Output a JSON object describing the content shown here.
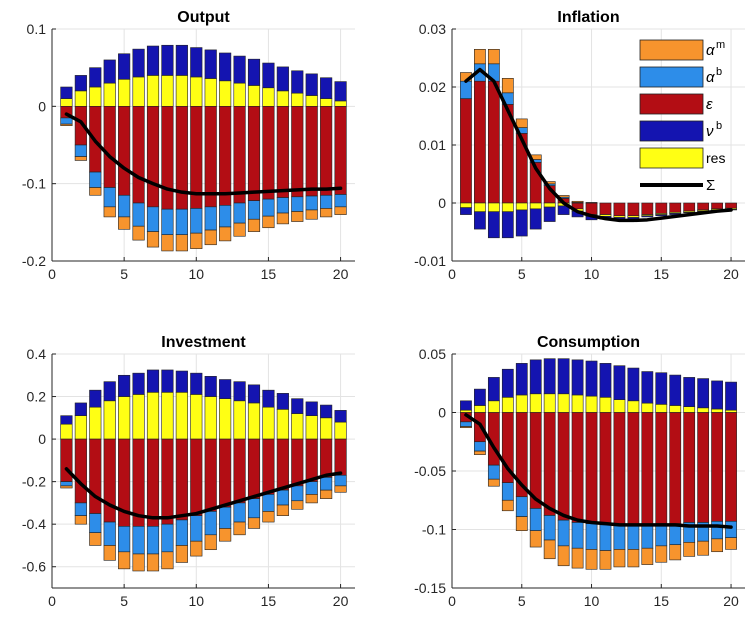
{
  "figure": {
    "colors": {
      "alpha_m": "#F7942D",
      "alpha_b": "#2D8DE9",
      "epsilon": "#B30D14",
      "nu_b": "#1414B0",
      "res": "#FFFF14",
      "sigma": "#000000"
    }
  },
  "chart_data": [
    {
      "type": "bar",
      "title": "Output",
      "xlabel": "",
      "ylabel": "",
      "stacked": true,
      "x": [
        1,
        2,
        3,
        4,
        5,
        6,
        7,
        8,
        9,
        10,
        11,
        12,
        13,
        14,
        15,
        16,
        17,
        18,
        19,
        20
      ],
      "xlim": [
        0,
        21
      ],
      "ylim": [
        -0.2,
        0.1
      ],
      "xticks": [
        0,
        5,
        10,
        15,
        20
      ],
      "yticks": [
        -0.2,
        -0.1,
        0,
        0.1
      ],
      "yticklabels": [
        "-0.2",
        "-0.1",
        "0",
        "0.1"
      ],
      "grid": true,
      "series": [
        {
          "key": "res",
          "values": [
            0.01,
            0.02,
            0.025,
            0.03,
            0.035,
            0.038,
            0.04,
            0.04,
            0.04,
            0.038,
            0.036,
            0.033,
            0.03,
            0.027,
            0.024,
            0.02,
            0.017,
            0.014,
            0.01,
            0.007
          ]
        },
        {
          "key": "nu_b",
          "values": [
            0.015,
            0.02,
            0.025,
            0.03,
            0.033,
            0.036,
            0.038,
            0.039,
            0.039,
            0.038,
            0.037,
            0.036,
            0.035,
            0.034,
            0.032,
            0.031,
            0.029,
            0.028,
            0.027,
            0.025
          ]
        },
        {
          "key": "epsilon",
          "values": [
            -0.015,
            -0.05,
            -0.085,
            -0.105,
            -0.115,
            -0.125,
            -0.13,
            -0.133,
            -0.133,
            -0.132,
            -0.13,
            -0.128,
            -0.125,
            -0.122,
            -0.12,
            -0.118,
            -0.117,
            -0.116,
            -0.115,
            -0.114
          ]
        },
        {
          "key": "alpha_b",
          "values": [
            -0.008,
            -0.015,
            -0.02,
            -0.025,
            -0.028,
            -0.03,
            -0.032,
            -0.033,
            -0.033,
            -0.032,
            -0.03,
            -0.028,
            -0.026,
            -0.024,
            -0.022,
            -0.02,
            -0.019,
            -0.018,
            -0.017,
            -0.016
          ]
        },
        {
          "key": "alpha_m",
          "values": [
            -0.002,
            -0.005,
            -0.01,
            -0.013,
            -0.016,
            -0.018,
            -0.02,
            -0.021,
            -0.021,
            -0.02,
            -0.019,
            -0.018,
            -0.017,
            -0.016,
            -0.015,
            -0.014,
            -0.013,
            -0.012,
            -0.011,
            -0.01
          ]
        }
      ],
      "sigma": [
        -0.01,
        -0.02,
        -0.045,
        -0.065,
        -0.08,
        -0.092,
        -0.1,
        -0.107,
        -0.111,
        -0.113,
        -0.113,
        -0.113,
        -0.112,
        -0.111,
        -0.11,
        -0.109,
        -0.108,
        -0.107,
        -0.107,
        -0.106
      ]
    },
    {
      "type": "bar",
      "title": "Inflation",
      "xlabel": "",
      "ylabel": "",
      "stacked": true,
      "x": [
        1,
        2,
        3,
        4,
        5,
        6,
        7,
        8,
        9,
        10,
        11,
        12,
        13,
        14,
        15,
        16,
        17,
        18,
        19,
        20
      ],
      "xlim": [
        0,
        21
      ],
      "ylim": [
        -0.01,
        0.03
      ],
      "xticks": [
        0,
        5,
        10,
        15,
        20
      ],
      "xticklabels": [
        "0",
        "5",
        "10",
        "15",
        "20"
      ],
      "yticks": [
        -0.01,
        0,
        0.01,
        0.02,
        0.03
      ],
      "yticklabels": [
        "-0.01",
        "0",
        "0.01",
        "0.02",
        "0.03"
      ],
      "grid": true,
      "series": [
        {
          "key": "epsilon",
          "values": [
            0.018,
            0.021,
            0.021,
            0.017,
            0.012,
            0.007,
            0.003,
            0.0008,
            -0.001,
            -0.002,
            -0.002,
            -0.0022,
            -0.0022,
            -0.002,
            -0.0018,
            -0.0016,
            -0.0014,
            -0.0012,
            -0.001,
            -0.0009
          ]
        },
        {
          "key": "alpha_b",
          "values": [
            0.003,
            0.003,
            0.003,
            0.002,
            0.001,
            0.0005,
            0.0003,
            0.0002,
            0.0001,
            0,
            0,
            0,
            0,
            0,
            0,
            0,
            0,
            0,
            0,
            0
          ]
        },
        {
          "key": "alpha_m",
          "values": [
            0.0015,
            0.0025,
            0.0025,
            0.0025,
            0.0015,
            0.0008,
            0.0004,
            0.0003,
            0.0002,
            0.0001,
            0,
            0,
            0,
            0,
            0,
            0,
            0,
            0,
            0,
            0
          ]
        },
        {
          "key": "res",
          "values": [
            -0.0008,
            -0.0015,
            -0.0015,
            -0.0015,
            -0.0012,
            -0.001,
            -0.0007,
            -0.0005,
            -0.0004,
            -0.0003,
            -0.0003,
            -0.0003,
            -0.0003,
            -0.0002,
            -0.0002,
            -0.0002,
            -0.0002,
            -0.0002,
            -0.0002,
            -0.0002
          ]
        },
        {
          "key": "nu_b",
          "values": [
            -0.0012,
            -0.003,
            -0.0045,
            -0.0045,
            -0.0045,
            -0.0035,
            -0.0025,
            -0.0015,
            -0.001,
            -0.0006,
            -0.0005,
            -0.0004,
            -0.0003,
            -0.0002,
            -0.0002,
            -0.0002,
            -0.0001,
            -0.0001,
            -0.0001,
            -0.0001
          ]
        }
      ],
      "legend": {
        "location": "upper-right",
        "entries": [
          {
            "key": "alpha_m",
            "symbol": "α",
            "sup": "m"
          },
          {
            "key": "alpha_b",
            "symbol": "α",
            "sup": "b"
          },
          {
            "key": "epsilon",
            "symbol": "ε",
            "sup": ""
          },
          {
            "key": "nu_b",
            "symbol": "ν",
            "sup": "b"
          },
          {
            "key": "res",
            "symbol": "res",
            "sup": ""
          },
          {
            "key": "sigma",
            "symbol": "Σ",
            "sup": ""
          }
        ]
      },
      "sigma": [
        0.021,
        0.023,
        0.021,
        0.016,
        0.011,
        0.006,
        0.0025,
        0,
        -0.0015,
        -0.0022,
        -0.0027,
        -0.003,
        -0.003,
        -0.0029,
        -0.0026,
        -0.0023,
        -0.002,
        -0.0017,
        -0.0014,
        -0.0012
      ]
    },
    {
      "type": "bar",
      "title": "Investment",
      "xlabel": "",
      "ylabel": "",
      "stacked": true,
      "x": [
        1,
        2,
        3,
        4,
        5,
        6,
        7,
        8,
        9,
        10,
        11,
        12,
        13,
        14,
        15,
        16,
        17,
        18,
        19,
        20
      ],
      "xlim": [
        0,
        21
      ],
      "ylim": [
        -0.7,
        0.4
      ],
      "xticks": [
        0,
        5,
        10,
        15,
        20
      ],
      "yticks": [
        -0.6,
        -0.4,
        -0.2,
        0,
        0.2,
        0.4
      ],
      "yticklabels": [
        "-0.6",
        "-0.4",
        "-0.2",
        "0",
        "0.2",
        "0.4"
      ],
      "grid": true,
      "series": [
        {
          "key": "res",
          "values": [
            0.07,
            0.11,
            0.15,
            0.18,
            0.2,
            0.21,
            0.22,
            0.22,
            0.22,
            0.21,
            0.2,
            0.19,
            0.18,
            0.17,
            0.15,
            0.14,
            0.12,
            0.11,
            0.1,
            0.08
          ]
        },
        {
          "key": "nu_b",
          "values": [
            0.04,
            0.06,
            0.08,
            0.09,
            0.1,
            0.1,
            0.105,
            0.105,
            0.1,
            0.1,
            0.095,
            0.09,
            0.09,
            0.085,
            0.08,
            0.075,
            0.07,
            0.065,
            0.06,
            0.055
          ]
        },
        {
          "key": "epsilon",
          "values": [
            -0.2,
            -0.3,
            -0.35,
            -0.39,
            -0.41,
            -0.41,
            -0.41,
            -0.4,
            -0.38,
            -0.36,
            -0.34,
            -0.32,
            -0.3,
            -0.28,
            -0.26,
            -0.24,
            -0.22,
            -0.2,
            -0.18,
            -0.17
          ]
        },
        {
          "key": "alpha_b",
          "values": [
            -0.02,
            -0.06,
            -0.09,
            -0.11,
            -0.12,
            -0.13,
            -0.13,
            -0.13,
            -0.12,
            -0.12,
            -0.11,
            -0.1,
            -0.09,
            -0.09,
            -0.08,
            -0.07,
            -0.07,
            -0.06,
            -0.06,
            -0.05
          ]
        },
        {
          "key": "alpha_m",
          "values": [
            -0.01,
            -0.04,
            -0.06,
            -0.07,
            -0.08,
            -0.08,
            -0.08,
            -0.08,
            -0.08,
            -0.07,
            -0.07,
            -0.06,
            -0.06,
            -0.05,
            -0.05,
            -0.05,
            -0.04,
            -0.04,
            -0.04,
            -0.03
          ]
        }
      ],
      "sigma": [
        -0.14,
        -0.21,
        -0.27,
        -0.31,
        -0.34,
        -0.36,
        -0.37,
        -0.37,
        -0.36,
        -0.35,
        -0.33,
        -0.31,
        -0.29,
        -0.27,
        -0.25,
        -0.23,
        -0.21,
        -0.19,
        -0.17,
        -0.16
      ]
    },
    {
      "type": "bar",
      "title": "Consumption",
      "xlabel": "",
      "ylabel": "",
      "stacked": true,
      "x": [
        1,
        2,
        3,
        4,
        5,
        6,
        7,
        8,
        9,
        10,
        11,
        12,
        13,
        14,
        15,
        16,
        17,
        18,
        19,
        20
      ],
      "xlim": [
        0,
        21
      ],
      "ylim": [
        -0.15,
        0.05
      ],
      "xticks": [
        0,
        5,
        10,
        15,
        20
      ],
      "xticklabels": [
        "0",
        "5",
        "10",
        "15",
        "20"
      ],
      "yticks": [
        -0.15,
        -0.1,
        -0.05,
        0,
        0.05
      ],
      "yticklabels": [
        "-0.15",
        "-0.1",
        "-0.05",
        "0",
        "0.05"
      ],
      "grid": true,
      "series": [
        {
          "key": "res",
          "values": [
            0.002,
            0.006,
            0.01,
            0.013,
            0.015,
            0.016,
            0.016,
            0.016,
            0.015,
            0.014,
            0.013,
            0.011,
            0.01,
            0.008,
            0.007,
            0.006,
            0.005,
            0.004,
            0.003,
            0.002
          ]
        },
        {
          "key": "nu_b",
          "values": [
            0.008,
            0.014,
            0.02,
            0.024,
            0.027,
            0.029,
            0.03,
            0.03,
            0.03,
            0.03,
            0.029,
            0.029,
            0.028,
            0.027,
            0.027,
            0.026,
            0.025,
            0.025,
            0.024,
            0.024
          ]
        },
        {
          "key": "epsilon",
          "values": [
            -0.008,
            -0.025,
            -0.045,
            -0.06,
            -0.072,
            -0.082,
            -0.088,
            -0.092,
            -0.094,
            -0.095,
            -0.096,
            -0.096,
            -0.096,
            -0.096,
            -0.095,
            -0.095,
            -0.094,
            -0.094,
            -0.093,
            -0.093
          ]
        },
        {
          "key": "alpha_b",
          "values": [
            -0.004,
            -0.008,
            -0.012,
            -0.015,
            -0.017,
            -0.019,
            -0.021,
            -0.022,
            -0.022,
            -0.022,
            -0.022,
            -0.021,
            -0.021,
            -0.02,
            -0.019,
            -0.018,
            -0.017,
            -0.016,
            -0.015,
            -0.014
          ]
        },
        {
          "key": "alpha_m",
          "values": [
            -0.001,
            -0.003,
            -0.006,
            -0.009,
            -0.012,
            -0.014,
            -0.016,
            -0.017,
            -0.017,
            -0.017,
            -0.016,
            -0.015,
            -0.015,
            -0.014,
            -0.014,
            -0.013,
            -0.012,
            -0.012,
            -0.011,
            -0.01
          ]
        }
      ],
      "sigma": [
        -0.002,
        -0.01,
        -0.03,
        -0.048,
        -0.062,
        -0.074,
        -0.082,
        -0.088,
        -0.092,
        -0.094,
        -0.095,
        -0.096,
        -0.096,
        -0.096,
        -0.096,
        -0.096,
        -0.097,
        -0.097,
        -0.097,
        -0.098
      ]
    }
  ]
}
